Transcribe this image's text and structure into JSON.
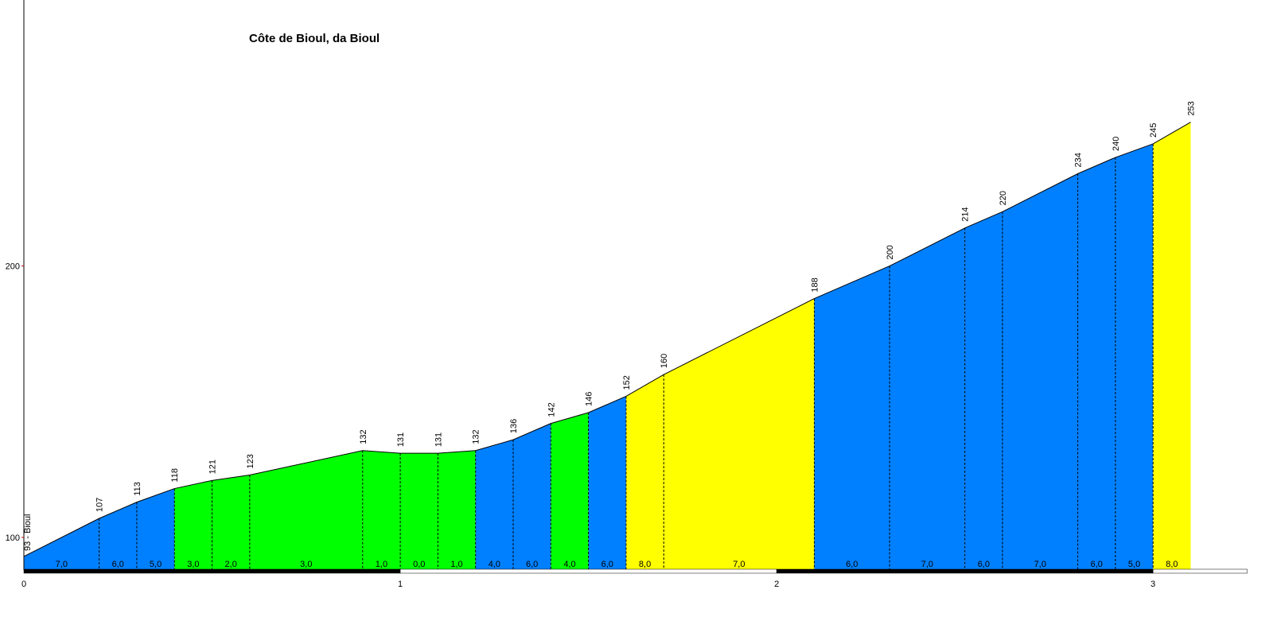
{
  "chart_data": {
    "type": "area",
    "title": "Côte de Bioul, da Bioul",
    "x": [
      0,
      0.2,
      0.3,
      0.4,
      0.5,
      0.6,
      0.9,
      1.0,
      1.1,
      1.2,
      1.3,
      1.4,
      1.5,
      1.6,
      1.7,
      2.1,
      2.3,
      2.5,
      2.6,
      2.8,
      2.9,
      3.0,
      3.1
    ],
    "values": [
      93,
      107,
      113,
      118,
      121,
      123,
      132,
      131,
      131,
      132,
      136,
      142,
      146,
      152,
      160,
      188,
      200,
      214,
      220,
      234,
      240,
      245,
      253
    ],
    "value_labels": [
      "93 - Bioul",
      "107",
      "113",
      "118",
      "121",
      "123",
      "132",
      "131",
      "131",
      "132",
      "136",
      "142",
      "146",
      "152",
      "160",
      "188",
      "200",
      "214",
      "220",
      "234",
      "240",
      "245",
      "253"
    ],
    "gradients": [
      7,
      6,
      5,
      3,
      2,
      3,
      1,
      0,
      1,
      4,
      6,
      4,
      6,
      8,
      7,
      6,
      7,
      6,
      7,
      6,
      5,
      8
    ],
    "gradient_labels": [
      "7,0",
      "6,0",
      "5,0",
      "3,0",
      "2,0",
      "3,0",
      "1,0",
      "0,0",
      "1,0",
      "4,0",
      "6,0",
      "4,0",
      "6,0",
      "8,0",
      "7,0",
      "6,0",
      "7,0",
      "6,0",
      "7,0",
      "6,0",
      "5,0",
      "8,0"
    ],
    "segment_colors": [
      "#0080ff",
      "#0080ff",
      "#0080ff",
      "#00ff00",
      "#00ff00",
      "#00ff00",
      "#00ff00",
      "#00ff00",
      "#00ff00",
      "#0080ff",
      "#0080ff",
      "#00ff00",
      "#0080ff",
      "#ffff00",
      "#ffff00",
      "#0080ff",
      "#0080ff",
      "#0080ff",
      "#0080ff",
      "#0080ff",
      "#0080ff",
      "#ffff00"
    ],
    "xlim": [
      0,
      3.25
    ],
    "ylim": [
      88,
      298
    ],
    "xticks": [
      0,
      1,
      2,
      3
    ],
    "yticks": [
      100,
      200
    ]
  }
}
